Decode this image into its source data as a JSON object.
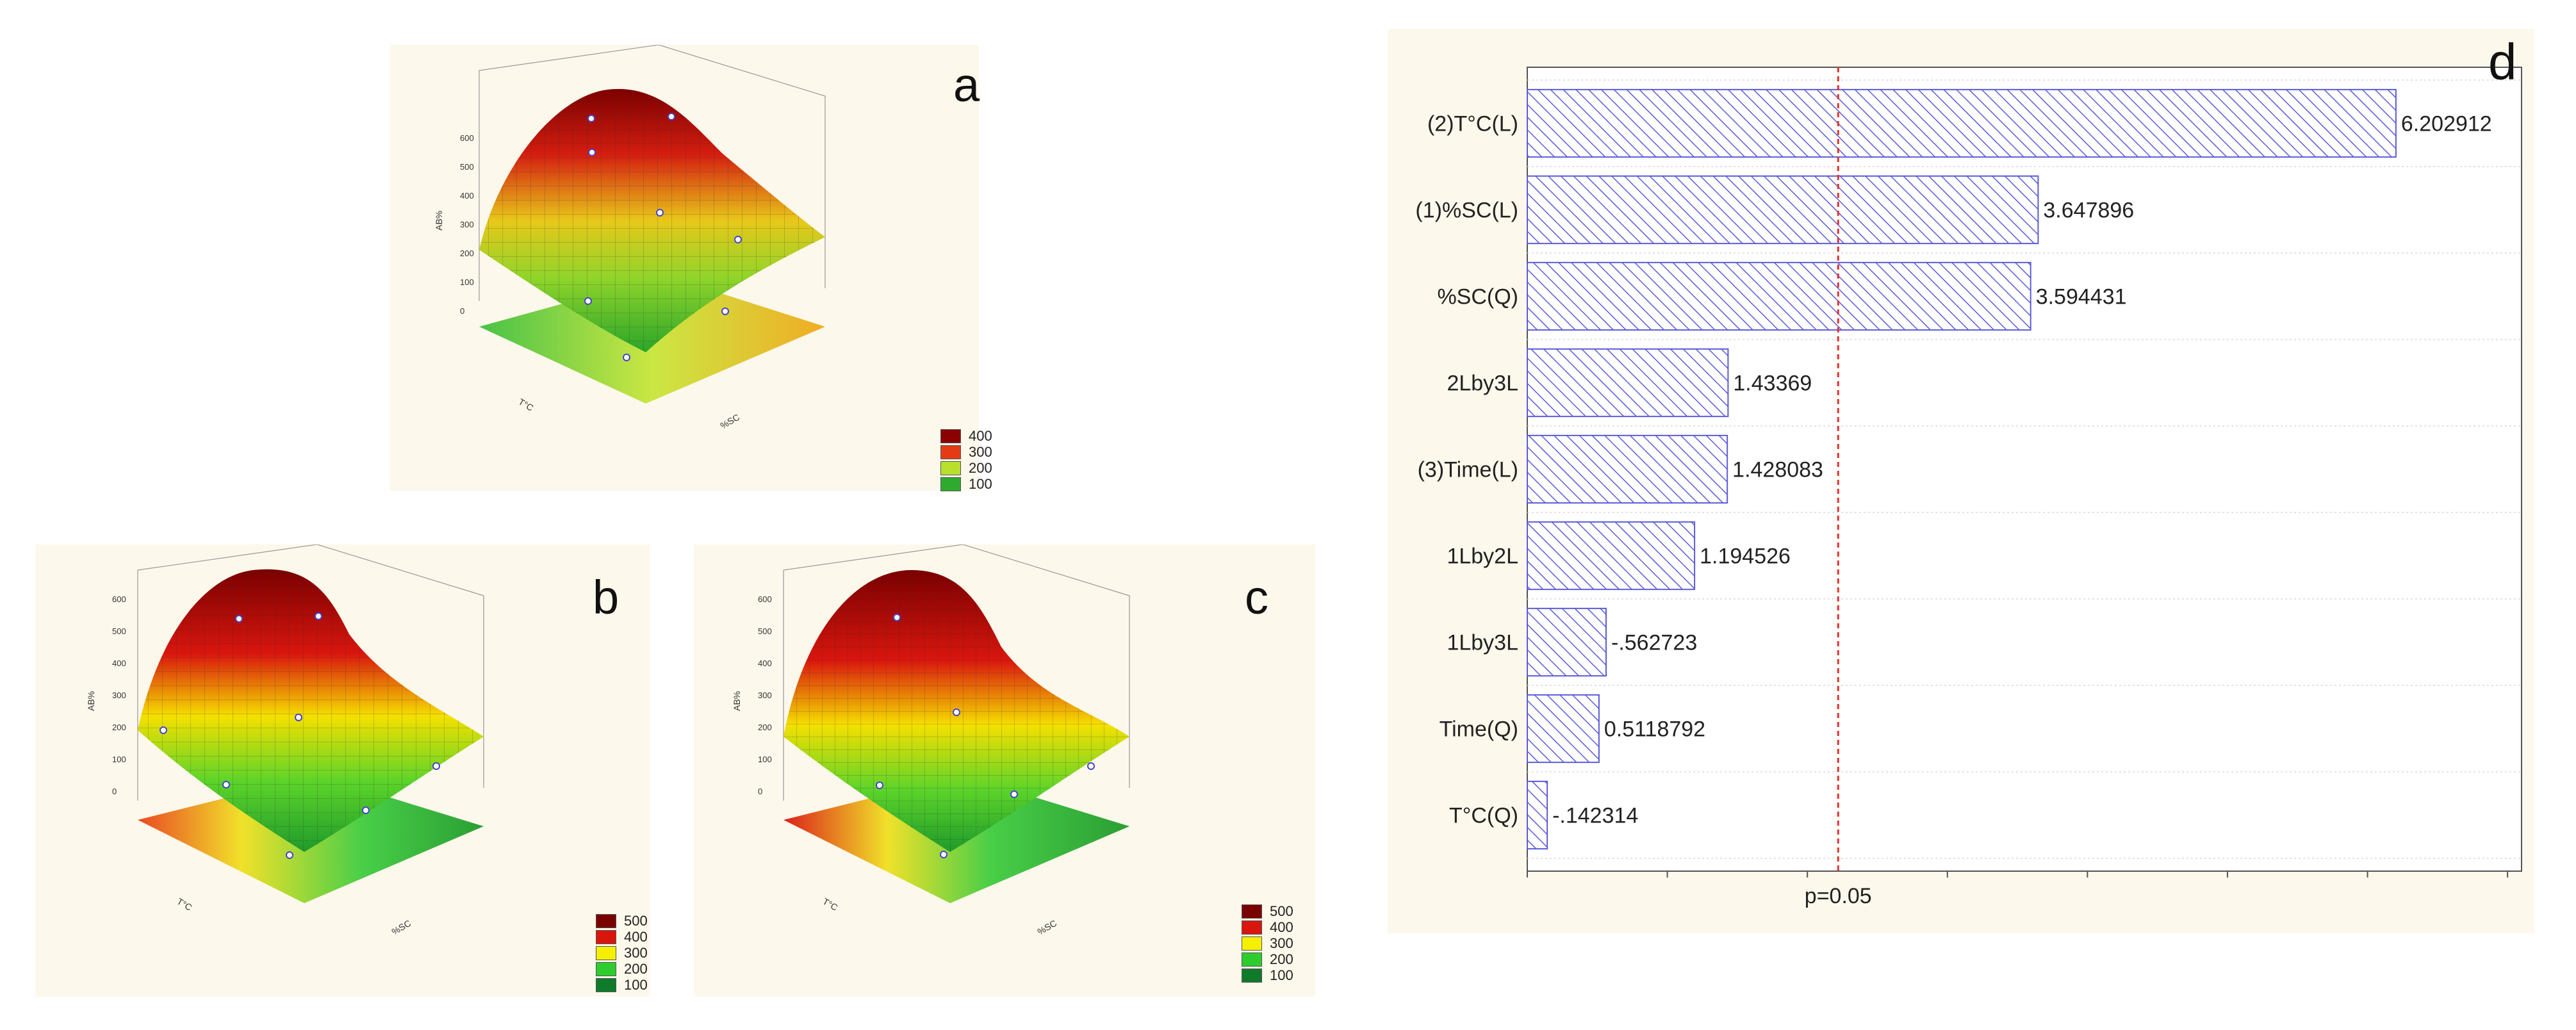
{
  "panels": {
    "a": {
      "letter": "a",
      "z_ticks": [
        "0",
        "100",
        "200",
        "300",
        "400",
        "500",
        "600"
      ],
      "z_label": "AB%",
      "x_label": "%SC",
      "y_label": "T°C",
      "legend": [
        {
          "label": "400",
          "color": "#8b0000"
        },
        {
          "label": "300",
          "color": "#e43b14"
        },
        {
          "label": "200",
          "color": "#b8e02c"
        },
        {
          "label": "100",
          "color": "#2eab2e"
        }
      ]
    },
    "b": {
      "letter": "b",
      "z_ticks": [
        "0",
        "100",
        "200",
        "300",
        "400",
        "500",
        "600"
      ],
      "z_label": "AB%",
      "x_label": "%SC",
      "y_label": "T°C",
      "legend": [
        {
          "label": "500",
          "color": "#7a0000"
        },
        {
          "label": "400",
          "color": "#d9160e"
        },
        {
          "label": "300",
          "color": "#f5f000"
        },
        {
          "label": "200",
          "color": "#2ecc2e"
        },
        {
          "label": "100",
          "color": "#0f7a2a"
        }
      ]
    },
    "c": {
      "letter": "c",
      "z_ticks": [
        "0",
        "100",
        "200",
        "300",
        "400",
        "500",
        "600"
      ],
      "z_label": "AB%",
      "x_label": "%SC",
      "y_label": "T°C",
      "legend": [
        {
          "label": "500",
          "color": "#7a0000"
        },
        {
          "label": "400",
          "color": "#d9160e"
        },
        {
          "label": "300",
          "color": "#f5f000"
        },
        {
          "label": "200",
          "color": "#2ecc2e"
        },
        {
          "label": "100",
          "color": "#0f7a2a"
        }
      ]
    },
    "d": {
      "letter": "d"
    }
  },
  "chart_data": [
    {
      "type": "bar",
      "panel": "d",
      "orientation": "horizontal",
      "title": "",
      "categories": [
        "(2)T°C(L)",
        "(1)%SC(L)",
        "%SC(Q)",
        "2Lby3L",
        "(3)Time(L)",
        "1Lby2L",
        "1Lby3L",
        "Time(Q)",
        "T°C(Q)"
      ],
      "values": [
        6.202912,
        3.647896,
        3.594431,
        1.43369,
        1.428083,
        1.194526,
        -0.562723,
        0.5118792,
        -0.142314
      ],
      "value_labels": [
        "6.202912",
        "3.647896",
        "3.594431",
        "1.43369",
        "1.428083",
        "1.194526",
        "-.562723",
        "0.5118792",
        "-.142314"
      ],
      "reference_line": {
        "label": "p=0.05",
        "value": 2.22,
        "color": "#e0342f"
      },
      "xlim": [
        0,
        7.1
      ],
      "bar_color": "#5b5bdb"
    },
    {
      "type": "surface3d",
      "panel": "a",
      "zlabel": "AB%",
      "zlim": [
        0,
        600
      ]
    },
    {
      "type": "surface3d",
      "panel": "b",
      "zlabel": "AB%",
      "zlim": [
        0,
        600
      ]
    },
    {
      "type": "surface3d",
      "panel": "c",
      "zlabel": "AB%",
      "zlim": [
        0,
        600
      ]
    }
  ]
}
